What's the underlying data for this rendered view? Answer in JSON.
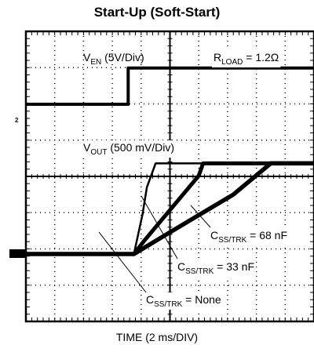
{
  "chart_data": {
    "type": "line",
    "title": "Start-Up (Soft-Start)",
    "xlabel": "TIME (2 ms/DIV)",
    "x_unit": "ms",
    "xlim": [
      -2,
      18
    ],
    "grid": true,
    "channel_marker": "2",
    "annotations": {
      "ven": {
        "main": "V",
        "sub": "EN",
        "rest": " (5V/Div)"
      },
      "rload": {
        "main": "R",
        "sub": "LOAD",
        "rest": " = 1.2Ω"
      },
      "vout": {
        "main": "V",
        "sub": "OUT",
        "rest": " (500 mV/Div)"
      },
      "css68": {
        "main": "C",
        "sub": "SS/TRK",
        "rest": " = 68 nF"
      },
      "css33": {
        "main": "C",
        "sub": "SS/TRK",
        "rest": " = 33 nF"
      },
      "cssnone": {
        "main": "C",
        "sub": "SS/TRK",
        "rest": " = None"
      }
    },
    "series": [
      {
        "name": "VEN (5V/Div)",
        "scale": "5 V/div",
        "x": [
          -2,
          5.1,
          5.1,
          18
        ],
        "y": [
          0,
          0,
          5,
          5
        ]
      },
      {
        "name": "CSS/TRK = None",
        "scale": "500 mV/div",
        "x": [
          -2,
          5.5,
          6.1,
          6.4,
          7.0,
          18
        ],
        "y": [
          0,
          0,
          0.55,
          0.92,
          1.25,
          1.25
        ]
      },
      {
        "name": "CSS/TRK = 33 nF",
        "scale": "500 mV/div",
        "x": [
          -2,
          5.5,
          6.2,
          10.0,
          10.3,
          18
        ],
        "y": [
          0,
          0,
          0.18,
          1.08,
          1.25,
          1.25
        ]
      },
      {
        "name": "CSS/TRK = 68 nF",
        "scale": "500 mV/div",
        "x": [
          -2,
          5.5,
          8.0,
          12.4,
          15.0,
          18
        ],
        "y": [
          0,
          0,
          0.3,
          0.82,
          1.25,
          1.25
        ]
      }
    ]
  }
}
